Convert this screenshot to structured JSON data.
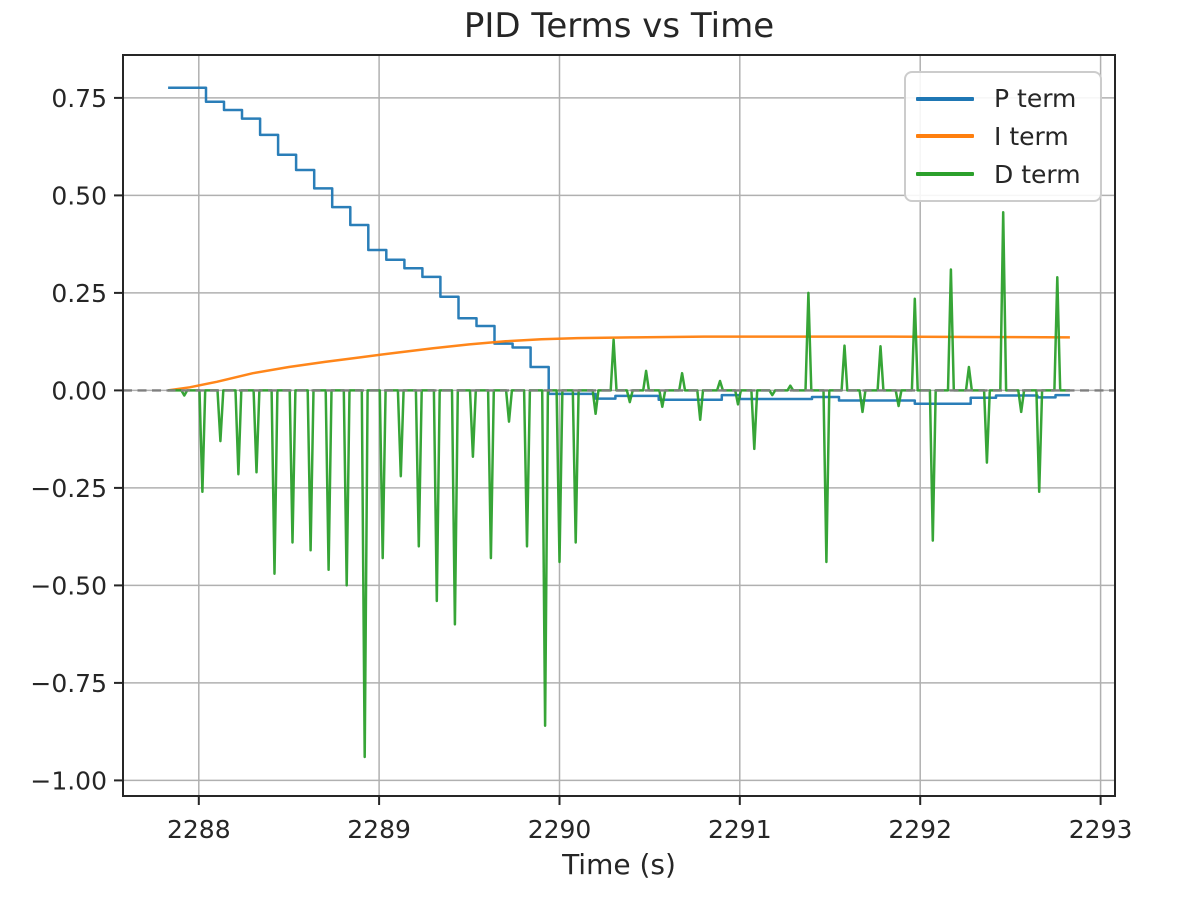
{
  "title": "PID Terms vs Time",
  "xlabel": "Time (s)",
  "legend": {
    "position": "upper right",
    "items": [
      {
        "label": "P term",
        "color": "#1f77b4"
      },
      {
        "label": "I term",
        "color": "#ff7f0e"
      },
      {
        "label": "D term",
        "color": "#2ca02c"
      }
    ]
  },
  "chart_data": {
    "type": "line",
    "title": "PID Terms vs Time",
    "xlabel": "Time (s)",
    "ylabel": "",
    "grid": true,
    "legend_position": "upper right",
    "axes": {
      "xlim": [
        2287.58,
        2293.08
      ],
      "ylim": [
        -1.04,
        0.86
      ],
      "xticks": [
        {
          "v": 2288,
          "label": "2288"
        },
        {
          "v": 2289,
          "label": "2289"
        },
        {
          "v": 2290,
          "label": "2290"
        },
        {
          "v": 2291,
          "label": "2291"
        },
        {
          "v": 2292,
          "label": "2292"
        },
        {
          "v": 2293,
          "label": "2293"
        }
      ],
      "yticks": [
        {
          "v": 0.75,
          "label": "0.75"
        },
        {
          "v": 0.5,
          "label": "0.50"
        },
        {
          "v": 0.25,
          "label": "0.25"
        },
        {
          "v": 0.0,
          "label": "0.00"
        },
        {
          "v": -0.25,
          "label": "−0.25"
        },
        {
          "v": -0.5,
          "label": "−0.50"
        },
        {
          "v": -0.75,
          "label": "−0.75"
        },
        {
          "v": -1.0,
          "label": "−1.00"
        }
      ]
    },
    "zero_line": {
      "y": 0,
      "style": "dashed",
      "color": "#7f7f7f"
    },
    "series": [
      {
        "name": "P term",
        "color": "#1f77b4",
        "style": "step",
        "end": 2292.83,
        "data": [
          [
            2287.83,
            0.776
          ],
          [
            2288.04,
            0.74
          ],
          [
            2288.14,
            0.719
          ],
          [
            2288.24,
            0.697
          ],
          [
            2288.34,
            0.655
          ],
          [
            2288.44,
            0.604
          ],
          [
            2288.54,
            0.565
          ],
          [
            2288.64,
            0.518
          ],
          [
            2288.74,
            0.47
          ],
          [
            2288.84,
            0.424
          ],
          [
            2288.94,
            0.36
          ],
          [
            2289.04,
            0.335
          ],
          [
            2289.14,
            0.313
          ],
          [
            2289.24,
            0.291
          ],
          [
            2289.34,
            0.24
          ],
          [
            2289.44,
            0.185
          ],
          [
            2289.54,
            0.165
          ],
          [
            2289.64,
            0.12
          ],
          [
            2289.74,
            0.11
          ],
          [
            2289.84,
            0.06
          ],
          [
            2289.94,
            -0.009
          ],
          [
            2290.2,
            -0.021
          ],
          [
            2290.31,
            -0.014
          ],
          [
            2290.55,
            -0.024
          ],
          [
            2290.9,
            -0.012
          ],
          [
            2291.0,
            -0.022
          ],
          [
            2291.4,
            -0.017
          ],
          [
            2291.55,
            -0.026
          ],
          [
            2291.97,
            -0.034
          ],
          [
            2292.28,
            -0.019
          ],
          [
            2292.42,
            -0.013
          ],
          [
            2292.65,
            -0.018
          ],
          [
            2292.75,
            -0.012
          ]
        ]
      },
      {
        "name": "I term",
        "color": "#ff7f0e",
        "style": "line",
        "data": [
          [
            2287.83,
            0.0
          ],
          [
            2287.95,
            0.008
          ],
          [
            2288.1,
            0.022
          ],
          [
            2288.3,
            0.044
          ],
          [
            2288.5,
            0.06
          ],
          [
            2288.7,
            0.073
          ],
          [
            2288.9,
            0.085
          ],
          [
            2289.1,
            0.097
          ],
          [
            2289.3,
            0.108
          ],
          [
            2289.5,
            0.118
          ],
          [
            2289.7,
            0.126
          ],
          [
            2289.9,
            0.131
          ],
          [
            2290.1,
            0.134
          ],
          [
            2290.4,
            0.136
          ],
          [
            2290.8,
            0.138
          ],
          [
            2291.3,
            0.138
          ],
          [
            2291.8,
            0.138
          ],
          [
            2292.3,
            0.137
          ],
          [
            2292.83,
            0.136
          ]
        ]
      },
      {
        "name": "D term",
        "color": "#2ca02c",
        "style": "spikes",
        "baseline": 0,
        "start": 2287.83,
        "end": 2292.83,
        "halfwidth": 0.016,
        "data": [
          [
            2287.92,
            -0.013
          ],
          [
            2288.02,
            -0.26
          ],
          [
            2288.12,
            -0.13
          ],
          [
            2288.22,
            -0.215
          ],
          [
            2288.32,
            -0.21
          ],
          [
            2288.42,
            -0.47
          ],
          [
            2288.52,
            -0.39
          ],
          [
            2288.62,
            -0.41
          ],
          [
            2288.72,
            -0.46
          ],
          [
            2288.82,
            -0.5
          ],
          [
            2288.92,
            -0.94
          ],
          [
            2289.02,
            -0.43
          ],
          [
            2289.12,
            -0.22
          ],
          [
            2289.22,
            -0.4
          ],
          [
            2289.32,
            -0.54
          ],
          [
            2289.42,
            -0.6
          ],
          [
            2289.52,
            -0.17
          ],
          [
            2289.62,
            -0.43
          ],
          [
            2289.72,
            -0.08
          ],
          [
            2289.82,
            -0.4
          ],
          [
            2289.92,
            -0.86
          ],
          [
            2290.0,
            -0.44
          ],
          [
            2290.09,
            -0.39
          ],
          [
            2290.2,
            -0.06
          ],
          [
            2290.3,
            0.13
          ],
          [
            2290.39,
            -0.03
          ],
          [
            2290.48,
            0.05
          ],
          [
            2290.57,
            -0.042
          ],
          [
            2290.68,
            0.044
          ],
          [
            2290.78,
            -0.075
          ],
          [
            2290.89,
            0.024
          ],
          [
            2290.99,
            -0.036
          ],
          [
            2291.08,
            -0.15
          ],
          [
            2291.18,
            -0.012
          ],
          [
            2291.28,
            0.012
          ],
          [
            2291.38,
            0.25
          ],
          [
            2291.48,
            -0.44
          ],
          [
            2291.58,
            0.115
          ],
          [
            2291.68,
            -0.055
          ],
          [
            2291.78,
            0.113
          ],
          [
            2291.88,
            -0.04
          ],
          [
            2291.97,
            0.235
          ],
          [
            2292.07,
            -0.385
          ],
          [
            2292.17,
            0.31
          ],
          [
            2292.27,
            0.06
          ],
          [
            2292.37,
            -0.185
          ],
          [
            2292.46,
            0.457
          ],
          [
            2292.56,
            -0.055
          ],
          [
            2292.66,
            -0.26
          ],
          [
            2292.76,
            0.29
          ]
        ]
      }
    ]
  }
}
